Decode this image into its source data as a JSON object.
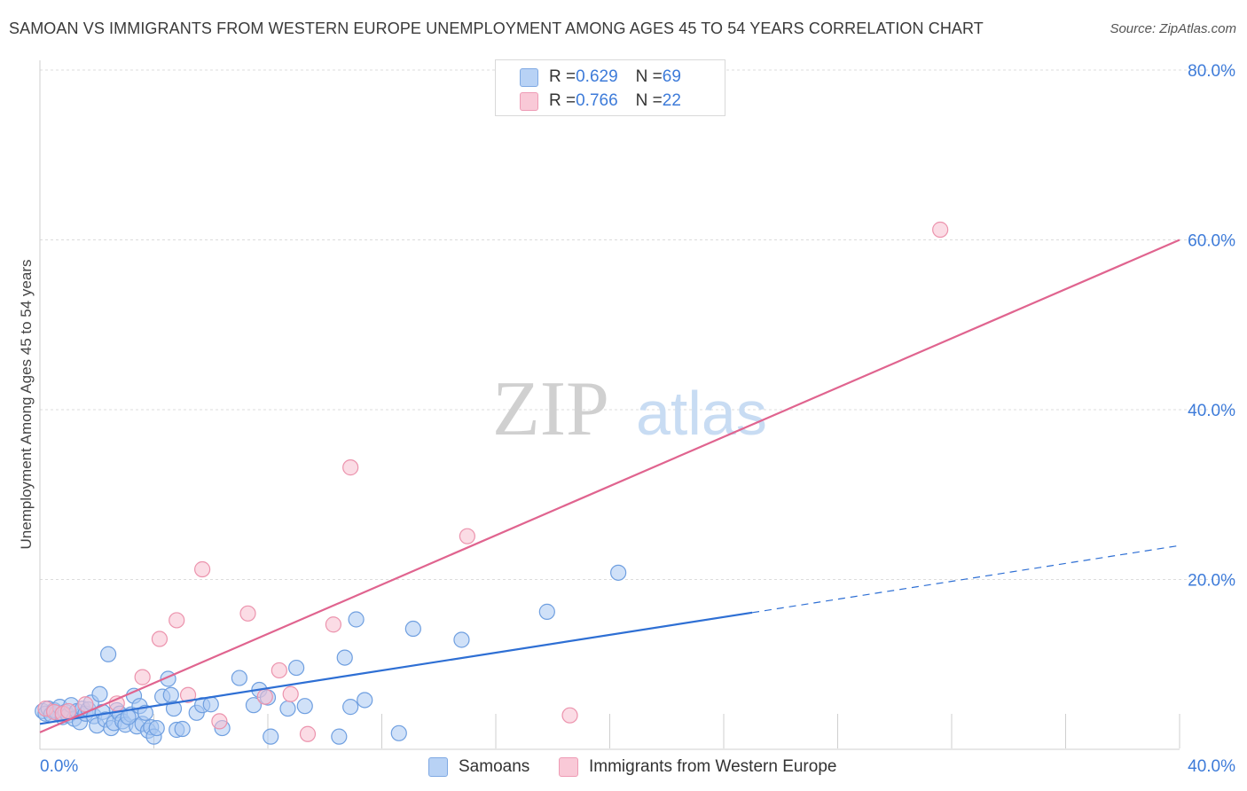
{
  "title": "SAMOAN VS IMMIGRANTS FROM WESTERN EUROPE UNEMPLOYMENT AMONG AGES 45 TO 54 YEARS CORRELATION CHART",
  "source": "Source: ZipAtlas.com",
  "watermark": {
    "zip": "ZIP",
    "atlas": "atlas"
  },
  "colors": {
    "samoans_fill": "#a9c8f3",
    "samoans_stroke": "#6f9fe0",
    "samoans_line": "#2e6fd4",
    "immigrants_fill": "#f7bfcf",
    "immigrants_stroke": "#ec93ad",
    "immigrants_line": "#e0648f",
    "tick_label": "#3d7bd9",
    "grid": "#dcdcdc"
  },
  "legend": {
    "rows": [
      {
        "r_label": "R = ",
        "r_value": "0.629",
        "n_label": "N = ",
        "n_value": "69"
      },
      {
        "r_label": "R = ",
        "r_value": "0.766",
        "n_label": "N = ",
        "n_value": "22"
      }
    ]
  },
  "bottom_legend": {
    "samoans": "Samoans",
    "immigrants": "Immigrants from Western Europe"
  },
  "chart_data": {
    "type": "scatter",
    "title": "SAMOAN VS IMMIGRANTS FROM WESTERN EUROPE UNEMPLOYMENT AMONG AGES 45 TO 54 YEARS CORRELATION CHART",
    "xlabel": "",
    "ylabel": "Unemployment Among Ages 45 to 54 years",
    "xlim": [
      0,
      40
    ],
    "ylim": [
      0,
      80
    ],
    "x_ticks": [
      "0.0%",
      "40.0%"
    ],
    "y_ticks": [
      {
        "value": 20,
        "label": "20.0%"
      },
      {
        "value": 40,
        "label": "40.0%"
      },
      {
        "value": 60,
        "label": "60.0%"
      },
      {
        "value": 80,
        "label": "80.0%"
      }
    ],
    "grid": true,
    "legend_placement": "top-center",
    "series": [
      {
        "name": "Samoans",
        "points": [
          [
            0.1,
            4.5
          ],
          [
            0.2,
            4.2
          ],
          [
            0.3,
            4.8
          ],
          [
            0.4,
            4.1
          ],
          [
            0.5,
            4.6
          ],
          [
            0.6,
            4.3
          ],
          [
            0.7,
            5.0
          ],
          [
            0.8,
            3.8
          ],
          [
            0.9,
            4.4
          ],
          [
            1.0,
            4.0
          ],
          [
            1.1,
            5.2
          ],
          [
            1.2,
            3.6
          ],
          [
            1.3,
            4.5
          ],
          [
            1.4,
            3.2
          ],
          [
            1.5,
            4.8
          ],
          [
            1.6,
            4.2
          ],
          [
            1.7,
            4.7
          ],
          [
            1.8,
            5.5
          ],
          [
            1.9,
            3.9
          ],
          [
            2.0,
            2.8
          ],
          [
            2.1,
            6.5
          ],
          [
            2.2,
            4.4
          ],
          [
            2.3,
            3.5
          ],
          [
            2.4,
            11.2
          ],
          [
            2.5,
            2.5
          ],
          [
            2.6,
            3.1
          ],
          [
            2.7,
            4.6
          ],
          [
            2.8,
            4.2
          ],
          [
            2.9,
            3.3
          ],
          [
            3.0,
            2.9
          ],
          [
            3.2,
            4.1
          ],
          [
            3.3,
            6.3
          ],
          [
            3.4,
            2.7
          ],
          [
            3.5,
            5.1
          ],
          [
            3.6,
            3.0
          ],
          [
            3.7,
            4.3
          ],
          [
            3.8,
            2.2
          ],
          [
            3.9,
            2.6
          ],
          [
            4.0,
            1.5
          ],
          [
            4.1,
            2.5
          ],
          [
            4.3,
            6.2
          ],
          [
            4.5,
            8.3
          ],
          [
            4.6,
            6.4
          ],
          [
            4.7,
            4.8
          ],
          [
            4.8,
            2.3
          ],
          [
            5.0,
            2.4
          ],
          [
            5.5,
            4.3
          ],
          [
            5.7,
            5.2
          ],
          [
            6.0,
            5.3
          ],
          [
            6.4,
            2.5
          ],
          [
            7.0,
            8.4
          ],
          [
            7.5,
            5.2
          ],
          [
            7.7,
            7.0
          ],
          [
            8.0,
            6.1
          ],
          [
            8.1,
            1.5
          ],
          [
            8.7,
            4.8
          ],
          [
            9.0,
            9.6
          ],
          [
            9.3,
            5.1
          ],
          [
            10.5,
            1.5
          ],
          [
            10.7,
            10.8
          ],
          [
            10.9,
            5.0
          ],
          [
            11.1,
            15.3
          ],
          [
            11.4,
            5.8
          ],
          [
            12.6,
            1.9
          ],
          [
            13.1,
            14.2
          ],
          [
            14.8,
            12.9
          ],
          [
            17.8,
            16.2
          ],
          [
            20.3,
            20.8
          ],
          [
            3.1,
            3.8
          ]
        ]
      },
      {
        "name": "Immigrants from Western Europe",
        "points": [
          [
            0.2,
            4.8
          ],
          [
            0.5,
            4.4
          ],
          [
            0.8,
            4.2
          ],
          [
            1.6,
            5.3
          ],
          [
            2.7,
            5.4
          ],
          [
            3.6,
            8.5
          ],
          [
            4.2,
            13.0
          ],
          [
            4.8,
            15.2
          ],
          [
            5.2,
            6.4
          ],
          [
            5.7,
            21.2
          ],
          [
            6.3,
            3.3
          ],
          [
            7.3,
            16.0
          ],
          [
            7.9,
            6.2
          ],
          [
            8.4,
            9.3
          ],
          [
            8.8,
            6.5
          ],
          [
            9.4,
            1.8
          ],
          [
            10.3,
            14.7
          ],
          [
            10.9,
            33.2
          ],
          [
            15.0,
            25.1
          ],
          [
            18.6,
            4.0
          ],
          [
            31.6,
            61.2
          ],
          [
            1.0,
            4.5
          ]
        ]
      }
    ],
    "trend_lines": [
      {
        "series": "Samoans",
        "x": [
          0,
          25
        ],
        "y": [
          3.0,
          16.1
        ]
      },
      {
        "series": "Samoans",
        "style": "dashed",
        "x": [
          25,
          40
        ],
        "y": [
          16.1,
          24.0
        ]
      },
      {
        "series": "Immigrants from Western Europe",
        "x": [
          0,
          40
        ],
        "y": [
          2.0,
          60.0
        ]
      }
    ]
  }
}
